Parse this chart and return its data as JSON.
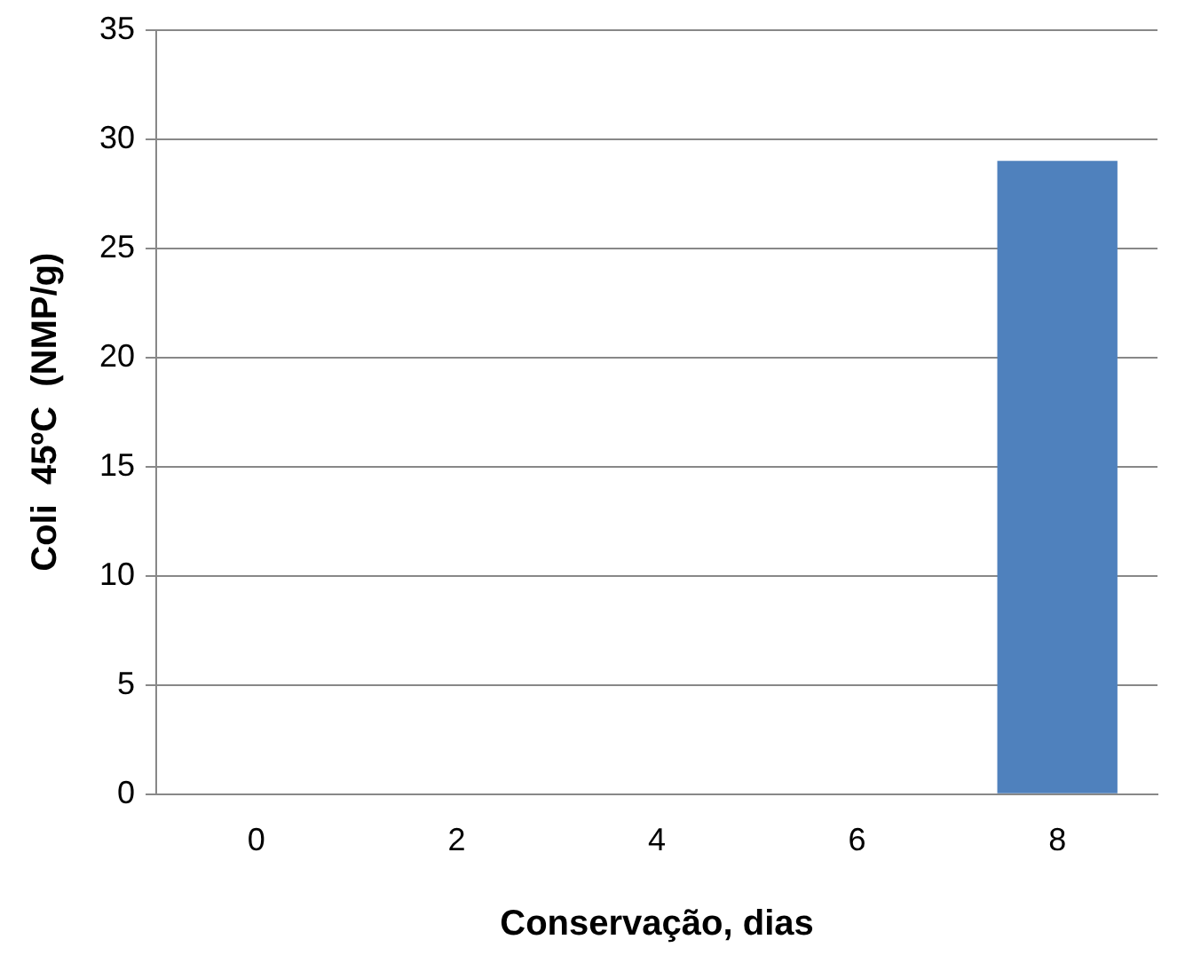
{
  "chart_data": {
    "type": "bar",
    "xlabel": "Conservação, dias",
    "ylabel": "Coli  45ºC  (NMP/g)",
    "categories": [
      "0",
      "2",
      "4",
      "6",
      "8"
    ],
    "values": [
      0,
      0,
      0,
      0,
      29
    ],
    "color": "#4f81bd",
    "ylim": [
      0,
      35
    ],
    "yticks": [
      0,
      5,
      10,
      15,
      20,
      25,
      30,
      35
    ],
    "grid": "y",
    "legend": false
  }
}
